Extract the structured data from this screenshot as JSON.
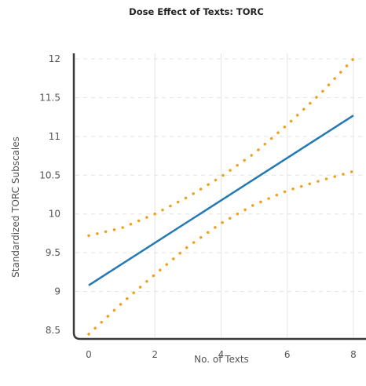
{
  "chart_data": {
    "type": "line",
    "title": "Dose Effect of Texts: TORC",
    "xlabel": "No. of Texts",
    "ylabel": "Standardized TORC Subscales",
    "xlim": [
      0,
      8
    ],
    "ylim": [
      8.5,
      12
    ],
    "x_ticks": [
      "0",
      "2",
      "4",
      "6",
      "8"
    ],
    "y_ticks": [
      "8.5",
      "9",
      "9.5",
      "10",
      "10.5",
      "11",
      "11.5",
      "12"
    ],
    "grid": true,
    "legend": "none",
    "series": [
      {
        "role": "estimate",
        "style": "solid",
        "color": "#2479b5",
        "x": [
          0,
          8
        ],
        "y": [
          9.08,
          11.27
        ]
      },
      {
        "role": "upper-bound",
        "style": "dotted",
        "color": "#f0a01e",
        "x": [
          0,
          1,
          2,
          3,
          4,
          5,
          6,
          7,
          8
        ],
        "y": [
          9.72,
          9.82,
          10.0,
          10.22,
          10.48,
          10.78,
          11.15,
          11.55,
          12.0
        ]
      },
      {
        "role": "lower-bound",
        "style": "dotted",
        "color": "#f0a01e",
        "x": [
          0,
          1,
          2,
          3,
          4,
          5,
          6,
          7,
          8
        ],
        "y": [
          8.45,
          8.85,
          9.22,
          9.58,
          9.88,
          10.12,
          10.3,
          10.43,
          10.55
        ]
      }
    ]
  }
}
